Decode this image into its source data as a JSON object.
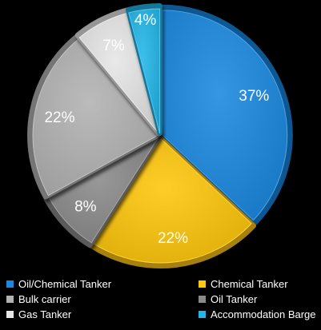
{
  "chart_data": {
    "type": "pie",
    "title": "",
    "categories": [
      "Oil/Chemical Tanker",
      "Chemical Tanker",
      "Oil Tanker",
      "Bulk carrier",
      "Gas Tanker",
      "Accommodation Barge"
    ],
    "values": [
      37,
      22,
      8,
      22,
      7,
      4
    ],
    "value_labels": [
      "37%",
      "22%",
      "8%",
      "22%",
      "7%",
      "4%"
    ],
    "colors": [
      "#1a88e0",
      "#ffc60a",
      "#8a8a8a",
      "#b2b2b2",
      "#e6e6e6",
      "#23b6e8"
    ],
    "legend_placement": "bottom",
    "legend": [
      {
        "label": "Oil/Chemical Tanker",
        "color": "#1a88e0"
      },
      {
        "label": "Chemical Tanker",
        "color": "#ffc60a"
      },
      {
        "label": "Bulk carrier",
        "color": "#b2b2b2"
      },
      {
        "label": "Oil Tanker",
        "color": "#8a8a8a"
      },
      {
        "label": "Gas Tanker",
        "color": "#e6e6e6"
      },
      {
        "label": "Accommodation Barge",
        "color": "#23b6e8"
      }
    ]
  }
}
